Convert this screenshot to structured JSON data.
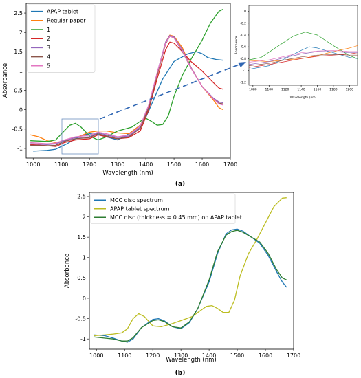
{
  "panel_a": {
    "label": "(a)",
    "chart_data": {
      "type": "line",
      "xlabel": "Wavelength (nm)",
      "ylabel": "Absorbance",
      "xlim": [
        975,
        1700
      ],
      "ylim": [
        -1.25,
        2.75
      ],
      "xticks": [
        1000,
        1100,
        1200,
        1300,
        1400,
        1500,
        1600,
        1700
      ],
      "yticks": [
        -1.0,
        -0.5,
        0.0,
        0.5,
        1.0,
        1.5,
        2.0,
        2.5
      ],
      "legend_position": "top-left",
      "series": [
        {
          "name": "APAP tablet",
          "color": "#1f77b4",
          "x": [
            1000,
            1050,
            1080,
            1100,
            1120,
            1150,
            1180,
            1200,
            1230,
            1260,
            1300,
            1340,
            1380,
            1400,
            1430,
            1460,
            1500,
            1550,
            1580,
            1600,
            1620,
            1650,
            1675
          ],
          "y": [
            -1.07,
            -1.05,
            -1.02,
            -0.95,
            -0.88,
            -0.75,
            -0.65,
            -0.62,
            -0.64,
            -0.7,
            -0.78,
            -0.62,
            -0.4,
            -0.2,
            0.3,
            0.8,
            1.25,
            1.45,
            1.5,
            1.45,
            1.35,
            1.3,
            1.28
          ]
        },
        {
          "name": "Regular paper",
          "color": "#ff7f0e",
          "x": [
            990,
            1020,
            1050,
            1080,
            1100,
            1130,
            1160,
            1200,
            1230,
            1260,
            1300,
            1340,
            1380,
            1410,
            1440,
            1470,
            1485,
            1500,
            1530,
            1560,
            1600,
            1640,
            1660,
            1675
          ],
          "y": [
            -0.65,
            -0.7,
            -0.8,
            -0.85,
            -0.82,
            -0.75,
            -0.7,
            -0.58,
            -0.55,
            -0.55,
            -0.6,
            -0.62,
            -0.4,
            0.0,
            0.9,
            1.75,
            1.93,
            1.9,
            1.6,
            1.1,
            0.6,
            0.25,
            0.05,
            0.0
          ]
        },
        {
          "name": "1",
          "color": "#2ca02c",
          "x": [
            990,
            1050,
            1080,
            1110,
            1130,
            1150,
            1170,
            1200,
            1230,
            1260,
            1300,
            1350,
            1380,
            1400,
            1420,
            1440,
            1460,
            1480,
            1500,
            1530,
            1560,
            1600,
            1630,
            1660,
            1675
          ],
          "y": [
            -0.8,
            -0.82,
            -0.78,
            -0.55,
            -0.4,
            -0.35,
            -0.45,
            -0.68,
            -0.78,
            -0.7,
            -0.55,
            -0.45,
            -0.3,
            -0.22,
            -0.3,
            -0.4,
            -0.38,
            -0.15,
            0.35,
            0.9,
            1.3,
            1.8,
            2.25,
            2.55,
            2.6
          ]
        },
        {
          "name": "2",
          "color": "#d62728",
          "x": [
            990,
            1050,
            1080,
            1110,
            1150,
            1200,
            1230,
            1260,
            1300,
            1340,
            1380,
            1410,
            1440,
            1470,
            1485,
            1500,
            1530,
            1560,
            1600,
            1640,
            1660,
            1675
          ],
          "y": [
            -0.9,
            -0.93,
            -0.95,
            -0.85,
            -0.78,
            -0.75,
            -0.65,
            -0.7,
            -0.75,
            -0.72,
            -0.55,
            0.0,
            0.8,
            1.55,
            1.75,
            1.72,
            1.5,
            1.25,
            1.0,
            0.7,
            0.56,
            0.53
          ]
        },
        {
          "name": "3",
          "color": "#9467bd",
          "x": [
            990,
            1050,
            1080,
            1110,
            1150,
            1200,
            1230,
            1260,
            1300,
            1340,
            1380,
            1410,
            1440,
            1470,
            1485,
            1500,
            1530,
            1560,
            1600,
            1640,
            1660,
            1675
          ],
          "y": [
            -0.88,
            -0.9,
            -0.88,
            -0.8,
            -0.72,
            -0.7,
            -0.6,
            -0.65,
            -0.72,
            -0.68,
            -0.45,
            0.1,
            0.95,
            1.75,
            1.92,
            1.88,
            1.55,
            1.1,
            0.6,
            0.3,
            0.2,
            0.18
          ]
        },
        {
          "name": "4",
          "color": "#8c564b",
          "x": [
            990,
            1050,
            1080,
            1110,
            1150,
            1200,
            1230,
            1260,
            1300,
            1340,
            1380,
            1410,
            1440,
            1470,
            1485,
            1500,
            1530,
            1560,
            1600,
            1640,
            1660,
            1675
          ],
          "y": [
            -0.92,
            -0.93,
            -0.92,
            -0.82,
            -0.75,
            -0.72,
            -0.62,
            -0.68,
            -0.75,
            -0.7,
            -0.48,
            0.05,
            0.9,
            1.7,
            1.9,
            1.86,
            1.5,
            1.08,
            0.6,
            0.28,
            0.17,
            0.15
          ]
        },
        {
          "name": "5",
          "color": "#e377c2",
          "x": [
            990,
            1050,
            1080,
            1110,
            1150,
            1200,
            1230,
            1260,
            1300,
            1340,
            1380,
            1410,
            1440,
            1470,
            1485,
            1500,
            1530,
            1560,
            1600,
            1640,
            1660,
            1675
          ],
          "y": [
            -0.85,
            -0.88,
            -0.86,
            -0.78,
            -0.7,
            -0.66,
            -0.58,
            -0.62,
            -0.7,
            -0.65,
            -0.42,
            0.12,
            0.95,
            1.72,
            1.9,
            1.86,
            1.52,
            1.08,
            0.6,
            0.28,
            0.15,
            0.12
          ]
        }
      ]
    },
    "inset": {
      "xlabel": "Wavelength (nm)",
      "ylabel": "Absorbance",
      "xlim": [
        1075,
        1210
      ],
      "ylim": [
        -1.25,
        0.1
      ],
      "xticks": [
        1080,
        1100,
        1120,
        1140,
        1160,
        1180,
        1200
      ],
      "yticks": [
        -1.2,
        -1.0,
        -0.8,
        -0.6,
        -0.4,
        -0.2,
        0.0
      ],
      "series": [
        {
          "name": "APAP tablet",
          "color": "#1f77b4",
          "x": [
            1075,
            1100,
            1120,
            1140,
            1150,
            1160,
            1180,
            1200,
            1210
          ],
          "y": [
            -0.98,
            -0.92,
            -0.8,
            -0.66,
            -0.6,
            -0.62,
            -0.7,
            -0.78,
            -0.8
          ]
        },
        {
          "name": "Regular paper",
          "color": "#ff7f0e",
          "x": [
            1075,
            1100,
            1120,
            1140,
            1160,
            1180,
            1200,
            1210
          ],
          "y": [
            -0.83,
            -0.85,
            -0.82,
            -0.8,
            -0.75,
            -0.68,
            -0.62,
            -0.58
          ]
        },
        {
          "name": "1",
          "color": "#2ca02c",
          "x": [
            1075,
            1090,
            1110,
            1130,
            1145,
            1160,
            1180,
            1200,
            1210
          ],
          "y": [
            -0.82,
            -0.78,
            -0.6,
            -0.42,
            -0.35,
            -0.4,
            -0.58,
            -0.75,
            -0.8
          ]
        },
        {
          "name": "2",
          "color": "#d62728",
          "x": [
            1075,
            1100,
            1120,
            1140,
            1160,
            1180,
            1200,
            1210
          ],
          "y": [
            -0.95,
            -0.9,
            -0.85,
            -0.8,
            -0.76,
            -0.74,
            -0.72,
            -0.7
          ]
        },
        {
          "name": "3",
          "color": "#9467bd",
          "x": [
            1075,
            1100,
            1120,
            1140,
            1160,
            1180,
            1200,
            1210
          ],
          "y": [
            -0.9,
            -0.85,
            -0.78,
            -0.72,
            -0.68,
            -0.68,
            -0.7,
            -0.7
          ]
        },
        {
          "name": "4",
          "color": "#8c564b",
          "x": [
            1075,
            1100,
            1120,
            1140,
            1160,
            1180,
            1200,
            1210
          ],
          "y": [
            -0.92,
            -0.88,
            -0.82,
            -0.77,
            -0.74,
            -0.73,
            -0.74,
            -0.74
          ]
        },
        {
          "name": "5",
          "color": "#e377c2",
          "x": [
            1075,
            1100,
            1120,
            1140,
            1160,
            1180,
            1200,
            1210
          ],
          "y": [
            -0.86,
            -0.82,
            -0.76,
            -0.7,
            -0.67,
            -0.66,
            -0.68,
            -0.68
          ]
        }
      ]
    }
  },
  "panel_b": {
    "label": "(b)",
    "chart_data": {
      "type": "line",
      "xlabel": "Wavelength (nm)",
      "ylabel": "Absorbance",
      "xlim": [
        975,
        1700
      ],
      "ylim": [
        -1.25,
        2.6
      ],
      "xticks": [
        1000,
        1100,
        1200,
        1300,
        1400,
        1500,
        1600,
        1700
      ],
      "yticks": [
        -1.0,
        -0.5,
        0.0,
        0.5,
        1.0,
        1.5,
        2.0,
        2.5
      ],
      "legend_position": "top-left",
      "series": [
        {
          "name": "MCC disc spectrum",
          "color": "#1f77b4",
          "x": [
            990,
            1030,
            1060,
            1090,
            1110,
            1130,
            1160,
            1200,
            1220,
            1240,
            1270,
            1300,
            1330,
            1360,
            1400,
            1430,
            1460,
            1480,
            1500,
            1520,
            1550,
            1580,
            1610,
            1640,
            1660,
            1675
          ],
          "y": [
            -0.9,
            -0.92,
            -0.98,
            -1.05,
            -1.08,
            -1.0,
            -0.72,
            -0.52,
            -0.5,
            -0.55,
            -0.7,
            -0.75,
            -0.6,
            -0.25,
            0.4,
            1.1,
            1.58,
            1.68,
            1.7,
            1.65,
            1.5,
            1.35,
            1.05,
            0.65,
            0.4,
            0.27
          ]
        },
        {
          "name": "APAP tablet spectrum",
          "color": "#bcbd22",
          "x": [
            990,
            1030,
            1060,
            1090,
            1110,
            1130,
            1150,
            1170,
            1200,
            1230,
            1270,
            1300,
            1340,
            1370,
            1390,
            1410,
            1430,
            1450,
            1470,
            1490,
            1510,
            1540,
            1570,
            1600,
            1630,
            1660,
            1675
          ],
          "y": [
            -0.92,
            -0.9,
            -0.88,
            -0.85,
            -0.75,
            -0.5,
            -0.38,
            -0.45,
            -0.68,
            -0.7,
            -0.62,
            -0.55,
            -0.45,
            -0.3,
            -0.2,
            -0.18,
            -0.25,
            -0.35,
            -0.35,
            -0.05,
            0.55,
            1.1,
            1.45,
            1.85,
            2.25,
            2.46,
            2.47
          ]
        },
        {
          "name": "MCC disc (thickness = 0.45 mm) on APAP tablet",
          "color": "#2e7d32",
          "x": [
            990,
            1030,
            1060,
            1090,
            1110,
            1130,
            1160,
            1200,
            1220,
            1240,
            1270,
            1300,
            1330,
            1360,
            1400,
            1430,
            1460,
            1480,
            1500,
            1520,
            1550,
            1580,
            1610,
            1640,
            1660,
            1675
          ],
          "y": [
            -0.95,
            -0.98,
            -1.0,
            -1.05,
            -1.05,
            -0.97,
            -0.72,
            -0.55,
            -0.53,
            -0.57,
            -0.7,
            -0.73,
            -0.58,
            -0.25,
            0.45,
            1.15,
            1.55,
            1.64,
            1.67,
            1.62,
            1.5,
            1.38,
            1.1,
            0.7,
            0.5,
            0.45
          ]
        }
      ]
    }
  }
}
